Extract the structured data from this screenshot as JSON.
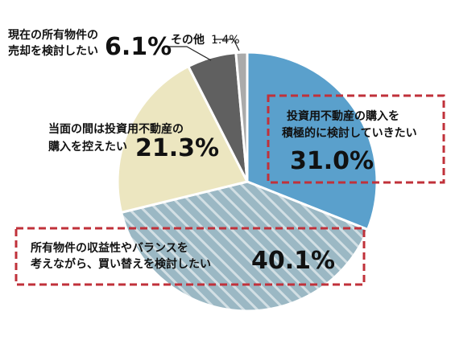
{
  "chart_data": {
    "type": "pie",
    "start_angle_deg": 0,
    "direction": "clockwise",
    "slices": [
      {
        "label_lines": [
          "投資用不動産の購入を",
          "積極的に検討していきたい"
        ],
        "value": 31.0,
        "value_label": "31.0%",
        "color": "#5aa0cc",
        "pattern": "none",
        "highlight": true
      },
      {
        "label_lines": [
          "所有物件の収益性やバランスを",
          "考えながら、買い替えを検討したい"
        ],
        "value": 40.1,
        "value_label": "40.1%",
        "color": "#9bb8c4",
        "pattern": "diagonal-stripes",
        "highlight": true
      },
      {
        "label_lines": [
          "当面の間は投資用不動産の",
          "購入を控えたい"
        ],
        "value": 21.3,
        "value_label": "21.3%",
        "color": "#ece6c0",
        "pattern": "none",
        "highlight": false
      },
      {
        "label_lines": [
          "現在の所有物件の",
          "売却を検討したい"
        ],
        "value": 6.1,
        "value_label": "6.1%",
        "color": "#606060",
        "pattern": "none",
        "highlight": false
      },
      {
        "label_lines": [
          "その他"
        ],
        "value": 1.4,
        "value_label": "1.4%",
        "color": "#aaaaaa",
        "pattern": "none",
        "highlight": false
      }
    ],
    "highlight_border_color": "#c0313a",
    "title": "",
    "legend": "none"
  }
}
